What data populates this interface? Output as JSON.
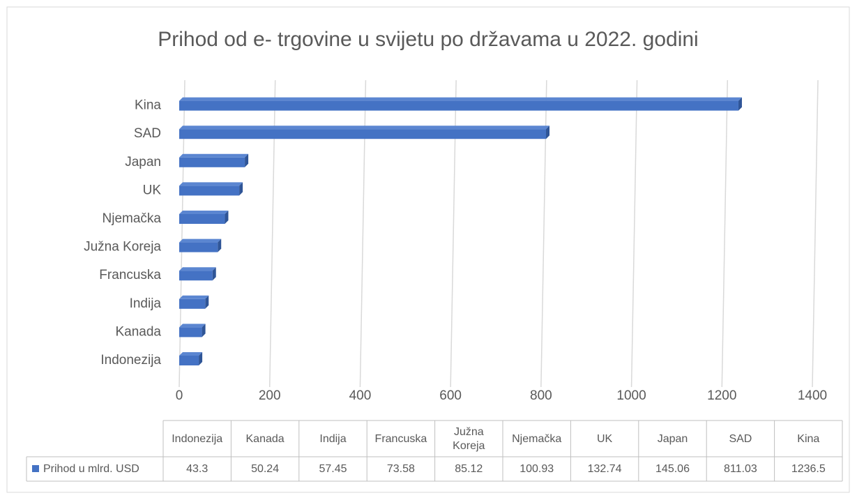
{
  "chart_data": {
    "type": "bar",
    "orientation": "horizontal",
    "title": "Prihod od e- trgovine u svijetu po državama u 2022. godini",
    "categories": [
      "Indonezija",
      "Kanada",
      "Indija",
      "Francuska",
      "Južna Koreja",
      "Njemačka",
      "UK",
      "Japan",
      "SAD",
      "Kina"
    ],
    "series": [
      {
        "name": "Prihod u mlrd. USD",
        "color": "#4472c4",
        "values": [
          43.3,
          50.24,
          57.45,
          73.58,
          85.12,
          100.93,
          132.74,
          145.06,
          811.03,
          1236.5
        ]
      }
    ],
    "xlim": [
      0,
      1400
    ],
    "xticks": [
      0,
      200,
      400,
      600,
      800,
      1000,
      1200,
      1400
    ],
    "grid": true,
    "data_table": true
  }
}
